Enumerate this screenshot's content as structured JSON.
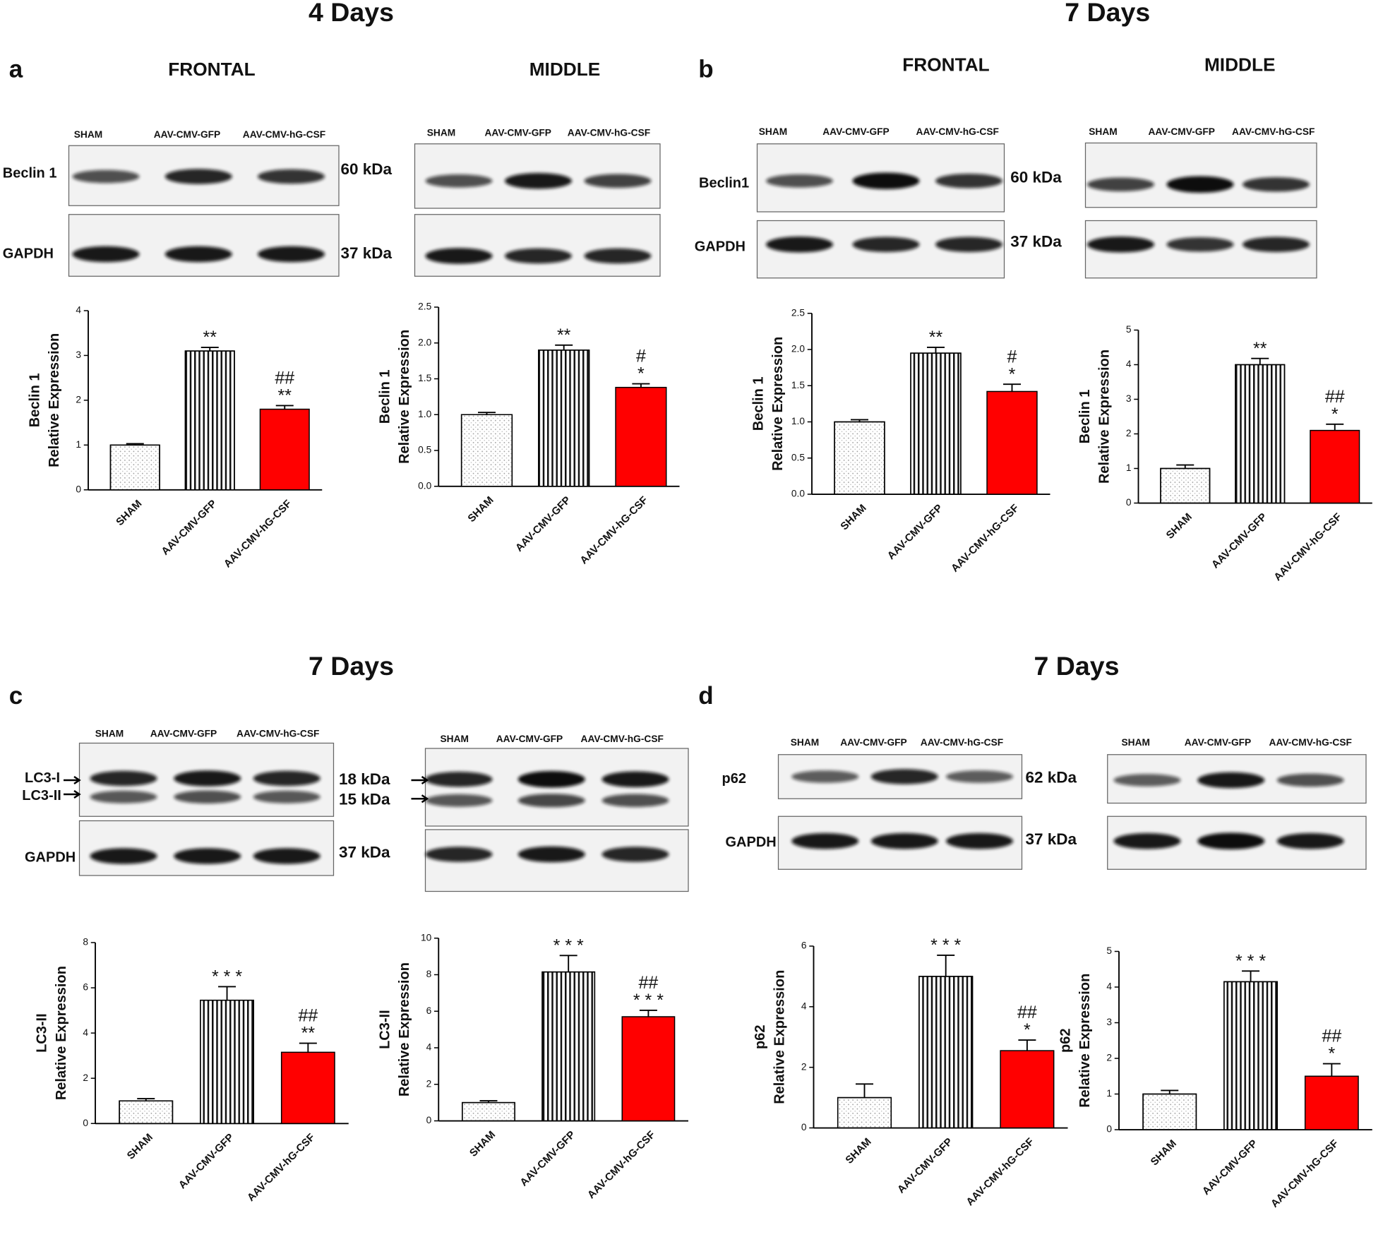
{
  "panels": [
    {
      "label": "a",
      "title": "4 Days",
      "columns": [
        "FRONTAL",
        "MIDDLE"
      ]
    },
    {
      "label": "b",
      "title": "7 Days",
      "columns": [
        "FRONTAL",
        "MIDDLE"
      ]
    },
    {
      "label": "c",
      "title": "7 Days"
    },
    {
      "label": "d",
      "title": "7 Days"
    }
  ],
  "blots": [
    {
      "lanes": [
        "SHAM",
        "AAV-CMV-GFP",
        "AAV-CMV-hG-CSF"
      ],
      "markers": [
        "Beclin 1",
        "GAPDH"
      ],
      "sizes": [
        "60 kDa",
        "37 kDa"
      ]
    },
    {
      "lanes": [
        "SHAM",
        "AAV-CMV-GFP",
        "AAV-CMV-hG-CSF"
      ]
    },
    {
      "lanes": [
        "SHAM",
        "AAV-CMV-GFP",
        "AAV-CMV-hG-CSF"
      ],
      "markers": [
        "Beclin1",
        "GAPDH"
      ],
      "sizes": [
        "60 kDa",
        "37 kDa"
      ]
    },
    {
      "lanes": [
        "SHAM",
        "AAV-CMV-GFP",
        "AAV-CMV-hG-CSF"
      ]
    },
    {
      "lanes": [
        "SHAM",
        "AAV-CMV-GFP",
        "AAV-CMV-hG-CSF"
      ],
      "markers": [
        "LC3-I",
        "LC3-II",
        "GAPDH"
      ],
      "sizes": [
        "18 kDa",
        "15 kDa",
        "37 kDa"
      ]
    },
    {
      "lanes": [
        "SHAM",
        "AAV-CMV-GFP",
        "AAV-CMV-hG-CSF"
      ]
    },
    {
      "lanes": [
        "SHAM",
        "AAV-CMV-GFP",
        "AAV-CMV-hG-CSF"
      ],
      "markers": [
        "p62",
        "GAPDH"
      ],
      "sizes": [
        "62 kDa",
        "37 kDa"
      ]
    },
    {
      "lanes": [
        "SHAM",
        "AAV-CMV-GFP",
        "AAV-CMV-hG-CSF"
      ]
    }
  ],
  "chart_data": [
    {
      "type": "bar",
      "ylabel": [
        "Beclin 1",
        "Relative Expression"
      ],
      "categories": [
        "SHAM",
        "AAV-CMV-GFP",
        "AAV-CMV-hG-CSF"
      ],
      "values": [
        1.0,
        3.1,
        1.8
      ],
      "errors": [
        0.03,
        0.08,
        0.08
      ],
      "colors": [
        "#ffffff",
        "#ffffff",
        "#ff0000"
      ],
      "patterns": [
        "dots",
        "stripes",
        "solid"
      ],
      "annotations": [
        [],
        [
          "**"
        ],
        [
          "##",
          "**"
        ]
      ],
      "ylim": [
        0,
        4
      ],
      "yticks": [
        0,
        1,
        2,
        3,
        4
      ]
    },
    {
      "type": "bar",
      "ylabel": [
        "Beclin 1",
        "Relative Expression"
      ],
      "categories": [
        "SHAM",
        "AAV-CMV-GFP",
        "AAV-CMV-hG-CSF"
      ],
      "values": [
        1.0,
        1.9,
        1.38
      ],
      "errors": [
        0.03,
        0.07,
        0.05
      ],
      "colors": [
        "#ffffff",
        "#ffffff",
        "#ff0000"
      ],
      "patterns": [
        "dots",
        "stripes",
        "solid"
      ],
      "annotations": [
        [],
        [
          "**"
        ],
        [
          "#",
          "*"
        ]
      ],
      "ylim": [
        0,
        2.5
      ],
      "yticks": [
        {
          "value": 0,
          "label": "0.0"
        },
        0.5,
        {
          "value": 1,
          "label": "1.0"
        },
        1.5,
        {
          "value": 2,
          "label": "2.0"
        },
        2.5
      ]
    },
    {
      "type": "bar",
      "ylabel": [
        "Beclin 1",
        "Relative Expression"
      ],
      "categories": [
        "SHAM",
        "AAV-CMV-GFP",
        "AAV-CMV-hG-CSF"
      ],
      "values": [
        1.0,
        1.95,
        1.42
      ],
      "errors": [
        0.03,
        0.08,
        0.1
      ],
      "colors": [
        "#ffffff",
        "#ffffff",
        "#ff0000"
      ],
      "patterns": [
        "dots",
        "stripes",
        "solid"
      ],
      "annotations": [
        [],
        [
          "**"
        ],
        [
          "#",
          "*"
        ]
      ],
      "ylim": [
        0,
        2.5
      ],
      "yticks": [
        {
          "value": 0,
          "label": "0.0"
        },
        0.5,
        {
          "value": 1,
          "label": "1.0"
        },
        1.5,
        {
          "value": 2,
          "label": "2.0"
        },
        2.5
      ]
    },
    {
      "type": "bar",
      "ylabel": [
        "Beclin 1",
        "Relative Expression"
      ],
      "categories": [
        "SHAM",
        "AAV-CMV-GFP",
        "AAV-CMV-hG-CSF"
      ],
      "values": [
        1.0,
        4.0,
        2.1
      ],
      "errors": [
        0.1,
        0.18,
        0.18
      ],
      "colors": [
        "#ffffff",
        "#ffffff",
        "#ff0000"
      ],
      "patterns": [
        "dots",
        "stripes",
        "solid"
      ],
      "annotations": [
        [],
        [
          "**"
        ],
        [
          "##",
          "*"
        ]
      ],
      "ylim": [
        0,
        5
      ],
      "yticks": [
        0,
        1,
        2,
        3,
        4,
        5
      ]
    },
    {
      "type": "bar",
      "ylabel": [
        "LC3-II",
        "Relative Expression"
      ],
      "categories": [
        "SHAM",
        "AAV-CMV-GFP",
        "AAV-CMV-hG-CSF"
      ],
      "values": [
        1.0,
        5.45,
        3.15
      ],
      "errors": [
        0.1,
        0.6,
        0.4
      ],
      "colors": [
        "#ffffff",
        "#ffffff",
        "#ff0000"
      ],
      "patterns": [
        "dots",
        "stripes",
        "solid"
      ],
      "annotations": [
        [],
        [
          "* * *"
        ],
        [
          "##",
          "**"
        ]
      ],
      "ylim": [
        0,
        8
      ],
      "yticks": [
        0,
        2,
        4,
        6,
        8
      ]
    },
    {
      "type": "bar",
      "ylabel": [
        "LC3-II",
        "Relative Expression"
      ],
      "categories": [
        "SHAM",
        "AAV-CMV-GFP",
        "AAV-CMV-hG-CSF"
      ],
      "values": [
        1.0,
        8.15,
        5.7
      ],
      "errors": [
        0.1,
        0.9,
        0.35
      ],
      "colors": [
        "#ffffff",
        "#ffffff",
        "#ff0000"
      ],
      "patterns": [
        "dots",
        "stripes",
        "solid"
      ],
      "annotations": [
        [],
        [
          "* * *"
        ],
        [
          "##",
          "* * *"
        ]
      ],
      "ylim": [
        0,
        10
      ],
      "yticks": [
        0,
        2,
        4,
        6,
        8,
        10
      ]
    },
    {
      "type": "bar",
      "ylabel": [
        "p62",
        "Relative Expression"
      ],
      "categories": [
        "SHAM",
        "AAV-CMV-GFP",
        "AAV-CMV-hG-CSF"
      ],
      "values": [
        1.0,
        5.0,
        2.55
      ],
      "errors": [
        0.45,
        0.7,
        0.35
      ],
      "colors": [
        "#ffffff",
        "#ffffff",
        "#ff0000"
      ],
      "patterns": [
        "dots",
        "stripes",
        "solid"
      ],
      "annotations": [
        [],
        [
          "* * *"
        ],
        [
          "##",
          "*"
        ]
      ],
      "ylim": [
        0,
        6
      ],
      "yticks": [
        0,
        2,
        4,
        6
      ]
    },
    {
      "type": "bar",
      "ylabel": [
        "p62",
        "Relative Expression"
      ],
      "categories": [
        "SHAM",
        "AAV-CMV-GFP",
        "AAV-CMV-hG-CSF"
      ],
      "values": [
        1.0,
        4.15,
        1.5
      ],
      "errors": [
        0.1,
        0.3,
        0.35
      ],
      "colors": [
        "#ffffff",
        "#ffffff",
        "#ff0000"
      ],
      "patterns": [
        "dots",
        "stripes",
        "solid"
      ],
      "annotations": [
        [],
        [
          "* * *"
        ],
        [
          "##",
          "*"
        ]
      ],
      "ylim": [
        0,
        5
      ],
      "yticks": [
        0,
        1,
        2,
        3,
        4,
        5
      ]
    }
  ]
}
